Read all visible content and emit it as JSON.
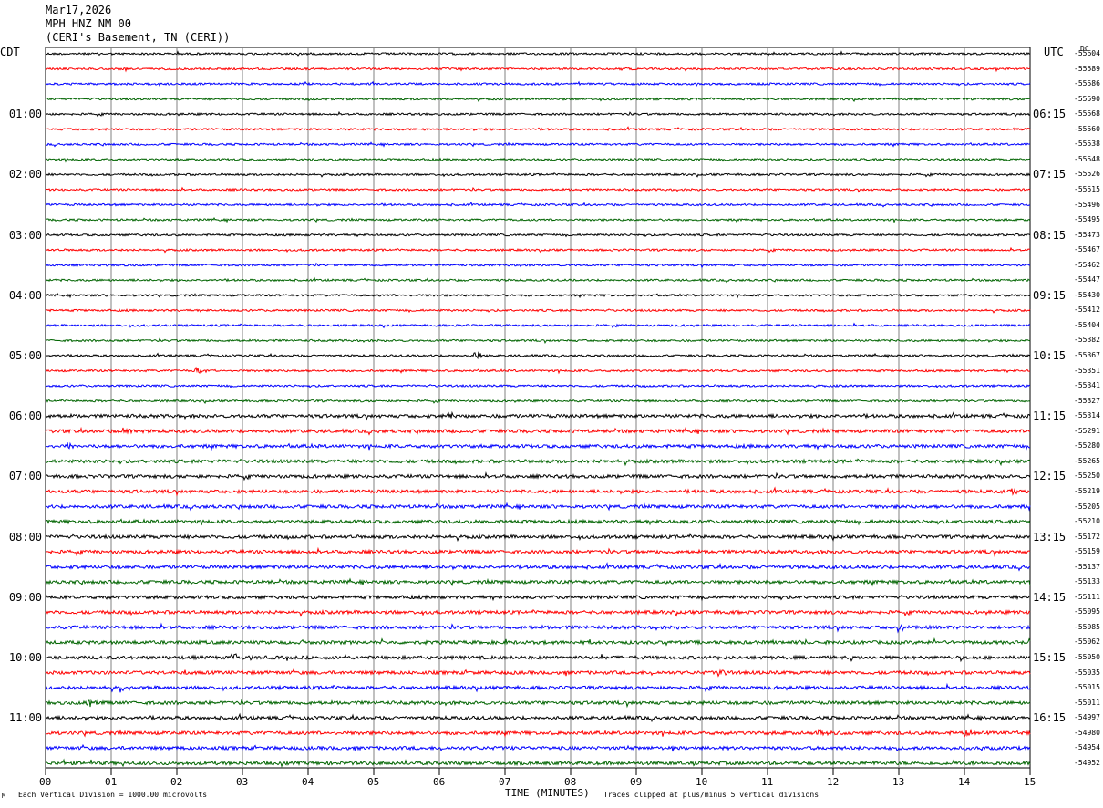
{
  "header": {
    "date": "Mar17,2026",
    "station": "MPH HNZ NM 00",
    "location": "(CERI's Basement, TN (CERI))"
  },
  "left_tz": "CDT",
  "right_tz": "UTC",
  "dc_label": "DC",
  "left_times": [
    "01:00",
    "02:00",
    "03:00",
    "04:00",
    "05:00",
    "06:00",
    "07:00",
    "08:00",
    "09:00",
    "10:00",
    "11:00"
  ],
  "right_times": [
    "06:15",
    "07:15",
    "08:15",
    "09:15",
    "10:15",
    "11:15",
    "12:15",
    "13:15",
    "14:15",
    "15:15",
    "16:15"
  ],
  "footer": {
    "scale": "Each Vertical Division = 1000.00 microvolts",
    "xaxis_title": "TIME (MINUTES)",
    "clip_note": "Traces clipped at plus/minus 5 vertical divisions",
    "corner": "M"
  },
  "colors": {
    "trace_cycle": [
      "#000000",
      "#ff0000",
      "#0000ff",
      "#006400"
    ],
    "grid": "#808080"
  },
  "chart_data": {
    "type": "line",
    "description_kind": "helicorder",
    "x_ticks": [
      "00",
      "01",
      "02",
      "03",
      "04",
      "05",
      "06",
      "07",
      "08",
      "09",
      "10",
      "11",
      "12",
      "13",
      "14",
      "15"
    ],
    "xlim": [
      0,
      15
    ],
    "xlabel": "TIME (MINUTES)",
    "rows": 48,
    "dc_offsets": [
      -55604,
      -55589,
      -55586,
      -55590,
      -55568,
      -55560,
      -55538,
      -55548,
      -55526,
      -55515,
      -55496,
      -55495,
      -55473,
      -55467,
      -55462,
      -55447,
      -55430,
      -55412,
      -55404,
      -55382,
      -55367,
      -55351,
      -55341,
      -55327,
      -55314,
      -55291,
      -55280,
      -55265,
      -55250,
      -55219,
      -55205,
      -55210,
      -55172,
      -55159,
      -55137,
      -55133,
      -55111,
      -55095,
      -55085,
      -55062,
      -55050,
      -55035,
      -55015,
      -55011,
      -54997,
      -54980,
      -54954,
      -54952
    ],
    "events": [
      {
        "row": 20,
        "minute": 6.55,
        "amp": 6
      },
      {
        "row": 21,
        "minute": 2.3,
        "amp": 3
      },
      {
        "row": 24,
        "minute": 6.15,
        "amp": 3
      },
      {
        "row": 25,
        "minute": 1.2,
        "amp": 4
      },
      {
        "row": 26,
        "minute": 0.35,
        "amp": 5
      },
      {
        "row": 29,
        "minute": 14.7,
        "amp": 4
      },
      {
        "row": 38,
        "minute": 13.0,
        "amp": 5
      },
      {
        "row": 40,
        "minute": 2.9,
        "amp": 4
      },
      {
        "row": 41,
        "minute": 10.25,
        "amp": 4
      },
      {
        "row": 42,
        "minute": 1.15,
        "amp": 5
      },
      {
        "row": 43,
        "minute": 0.65,
        "amp": 4
      },
      {
        "row": 45,
        "minute": 14.0,
        "amp": 6
      },
      {
        "row": 45,
        "minute": 11.8,
        "amp": 3
      }
    ]
  }
}
